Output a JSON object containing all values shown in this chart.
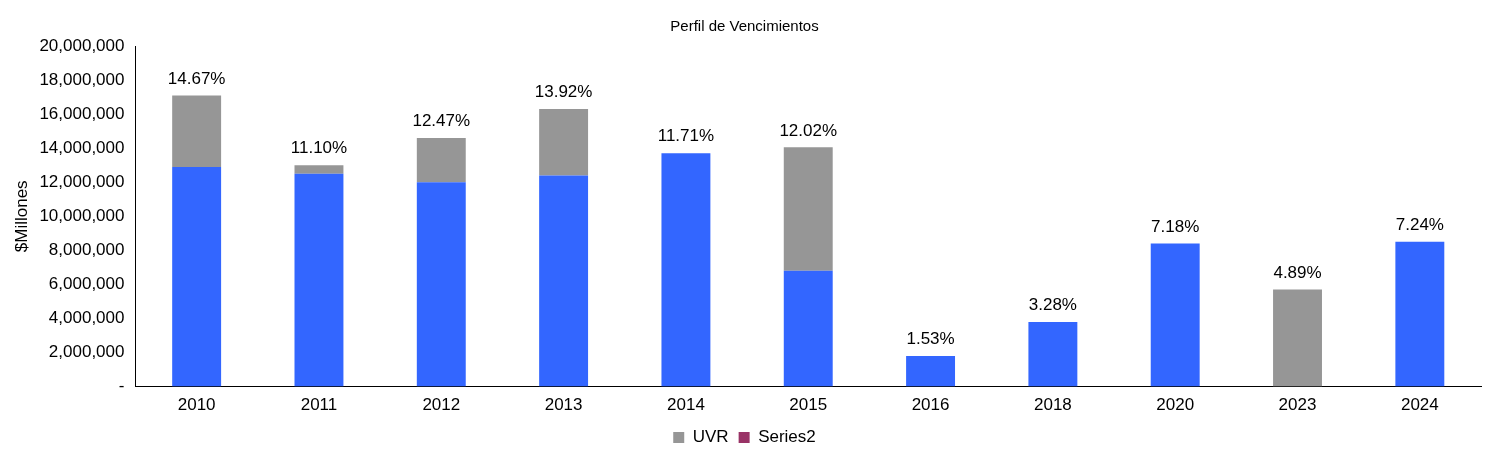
{
  "chart_data": {
    "type": "bar",
    "title": "Perfil de Vencimientos",
    "ylabel": "$Millones",
    "stacked": true,
    "categories": [
      "2010",
      "2011",
      "2012",
      "2013",
      "2014",
      "2015",
      "2016",
      "2018",
      "2020",
      "2023",
      "2024"
    ],
    "series": [
      {
        "color": "#3366ff",
        "values": [
          12900000,
          12500000,
          12000000,
          12400000,
          13700000,
          6800000,
          1800000,
          3800000,
          8400000,
          null,
          8500000
        ]
      },
      {
        "name": "UVR",
        "color": "#969696",
        "values": [
          4200000,
          500000,
          2600000,
          3900000,
          null,
          7250000,
          null,
          null,
          null,
          5700000,
          null
        ]
      },
      {
        "name": "Series2",
        "color": "#993366",
        "values": [
          null,
          null,
          null,
          null,
          null,
          null,
          null,
          null,
          null,
          null,
          null
        ]
      }
    ],
    "ylim": [
      0,
      20000000
    ],
    "yticks": [
      {
        "value": 0,
        "label": "-"
      },
      {
        "value": 2000000,
        "label": "2,000,000"
      },
      {
        "value": 4000000,
        "label": "4,000,000"
      },
      {
        "value": 6000000,
        "label": "6,000,000"
      },
      {
        "value": 8000000,
        "label": "8,000,000"
      },
      {
        "value": 10000000,
        "label": "10,000,000"
      },
      {
        "value": 12000000,
        "label": "12,000,000"
      },
      {
        "value": 14000000,
        "label": "14,000,000"
      },
      {
        "value": 16000000,
        "label": "16,000,000"
      },
      {
        "value": 18000000,
        "label": "18,000,000"
      },
      {
        "value": 20000000,
        "label": "20,000,000"
      }
    ],
    "grid": false,
    "legend": "bottom",
    "annotations": [
      {
        "text": "14.67%",
        "x": "2010",
        "y": 17100000
      },
      {
        "text": "11.10%",
        "x": "2011",
        "y": 13000000
      },
      {
        "text": "12.47%",
        "x": "2012",
        "y": 14600000
      },
      {
        "text": "13.92%",
        "x": "2013",
        "y": 16300000
      },
      {
        "text": "11.71%",
        "x": "2014",
        "y": 13700000
      },
      {
        "text": "12.02%",
        "x": "2015",
        "y": 14050000
      },
      {
        "text": "1.53%",
        "x": "2016",
        "y": 1800000
      },
      {
        "text": "3.28%",
        "x": "2018",
        "y": 3800000
      },
      {
        "text": "7.18%",
        "x": "2020",
        "y": 8400000
      },
      {
        "text": "4.89%",
        "x": "2023",
        "y": 5700000
      },
      {
        "text": "7.24%",
        "x": "2024",
        "y": 8500000
      }
    ]
  }
}
